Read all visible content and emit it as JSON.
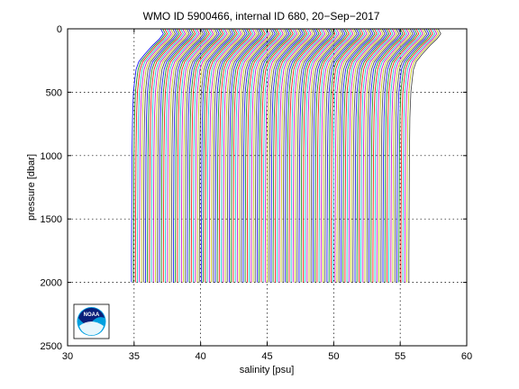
{
  "chart_data": {
    "type": "line",
    "title": "WMO ID 5900466, internal ID 680, 20−Sep−2017",
    "xlabel": "salinity [psu]",
    "ylabel": "pressure [dbar]",
    "xlim": [
      30,
      60
    ],
    "ylim": [
      2500,
      0
    ],
    "y_reversed": true,
    "grid": true,
    "grid_style": "dotted",
    "xticks": [
      30,
      35,
      40,
      45,
      50,
      55,
      60
    ],
    "yticks": [
      0,
      500,
      1000,
      1500,
      2000,
      2500
    ],
    "description_of_series": "waterfall of successive salinity profiles, each offset by about 0.15 psu",
    "profile_count": 140,
    "first_profile_start_x": 34.8,
    "profile_offset_psu": 0.15,
    "pressure_range": [
      0,
      2000
    ],
    "series_colors": [
      "#0000ff",
      "#008000",
      "#ff0000",
      "#00bfbf",
      "#bf00bf",
      "#bfbf00",
      "#404040"
    ],
    "logo": {
      "name": "noaa-logo",
      "text": "NOAA"
    }
  }
}
